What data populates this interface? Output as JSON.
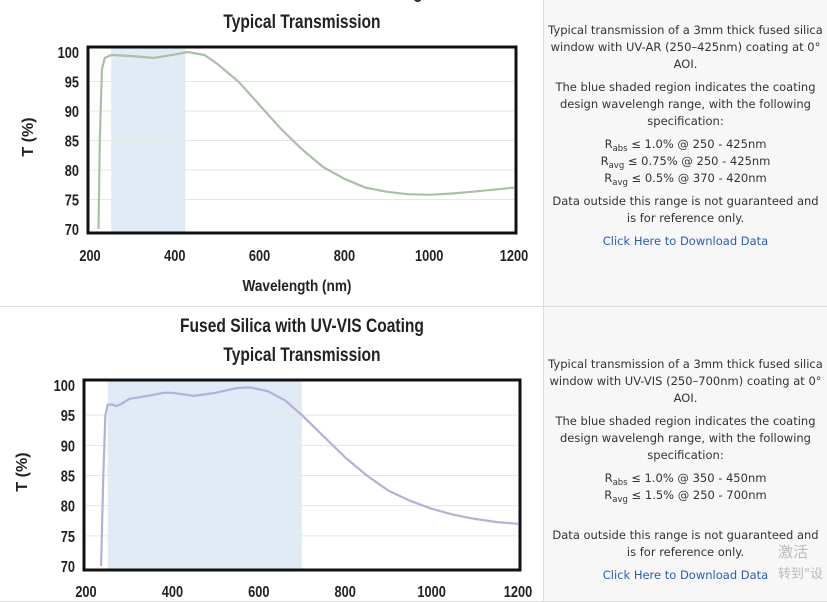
{
  "charts": [
    {
      "title": "Fused Silica with UV-AR Coating",
      "subtitle": "Typical Transmission",
      "xlabel": "Wavelength (nm)",
      "ylabel": "T (%)",
      "description": "Typical transmission of a 3mm thick fused silica window with UV-AR (250–425nm) coating at 0° AOI.",
      "shaded_note": "The blue shaded region indicates the coating design wavelengh range, with the following specification:",
      "specs": [
        {
          "sym": "R",
          "sub": "abs",
          "text": "≤ 1.0% @ 250 - 425nm"
        },
        {
          "sym": "R",
          "sub": "avg",
          "text": "≤ 0.75% @ 250 - 425nm"
        },
        {
          "sym": "R",
          "sub": "avg",
          "text": "≤ 0.5% @ 370 - 420nm"
        }
      ],
      "disclaimer": "Data outside this range is not guaranteed and is for reference only.",
      "download": "Click Here to Download Data"
    },
    {
      "title": "Fused Silica with UV-VIS Coating",
      "subtitle": "Typical Transmission",
      "ylabel": "T (%)",
      "description": "Typical transmission of a 3mm thick fused silica window with UV-VIS (250–700nm) coating at 0° AOI.",
      "shaded_note": "The blue shaded region indicates the coating design wavelengh range, with the following specification:",
      "specs": [
        {
          "sym": "R",
          "sub": "abs",
          "text": "≤ 1.0% @ 350 - 450nm"
        },
        {
          "sym": "R",
          "sub": "avg",
          "text": "≤ 1.5% @ 250 - 700nm"
        }
      ],
      "disclaimer": "Data outside this range is not guaranteed and is for reference only.",
      "download": "Click Here to Download Data"
    }
  ],
  "watermark": {
    "line1": "激活",
    "line2": "转到\"设"
  },
  "chart_data": [
    {
      "type": "line",
      "title": "Fused Silica with UV-AR Coating Typical Transmission",
      "xlabel": "Wavelength (nm)",
      "ylabel": "T (%)",
      "xlim": [
        200,
        1200
      ],
      "ylim": [
        70,
        100
      ],
      "xticks": [
        200,
        400,
        600,
        800,
        1000,
        1200
      ],
      "yticks": [
        70,
        75,
        80,
        85,
        90,
        95,
        100
      ],
      "grid": true,
      "shaded_range": [
        250,
        425
      ],
      "color": "#a9c0a6",
      "shade_color": "#e0ebf6",
      "x": [
        220,
        223,
        228,
        235,
        250,
        300,
        350,
        400,
        430,
        470,
        500,
        550,
        600,
        650,
        700,
        750,
        800,
        850,
        900,
        950,
        1000,
        1050,
        1100,
        1200
      ],
      "y": [
        70,
        85,
        97,
        99,
        99.5,
        99.3,
        99,
        99.6,
        100,
        99.5,
        98,
        95,
        91,
        87,
        83.5,
        80.5,
        78.5,
        77,
        76.3,
        75.9,
        75.8,
        76,
        76.3,
        77
      ]
    },
    {
      "type": "line",
      "title": "Fused Silica with UV-VIS Coating Typical Transmission",
      "ylabel": "T (%)",
      "xlim": [
        200,
        1200
      ],
      "ylim": [
        70,
        100
      ],
      "xticks": [
        200,
        400,
        600,
        800,
        1000,
        1200
      ],
      "yticks": [
        70,
        75,
        80,
        85,
        90,
        95,
        100
      ],
      "grid": true,
      "shaded_range": [
        250,
        700
      ],
      "color": "#b4b0d8",
      "shade_color": "#e0ebf6",
      "x": [
        235,
        240,
        245,
        250,
        260,
        270,
        280,
        300,
        350,
        380,
        400,
        450,
        500,
        550,
        580,
        620,
        660,
        700,
        750,
        800,
        850,
        900,
        950,
        1000,
        1050,
        1100,
        1150,
        1200
      ],
      "y": [
        70,
        85,
        95,
        96.7,
        96.8,
        96.5,
        96.8,
        97.7,
        98.3,
        98.7,
        98.7,
        98.2,
        98.7,
        99.5,
        99.6,
        99,
        97.5,
        95,
        91.5,
        88,
        85,
        82.5,
        80.8,
        79.5,
        78.5,
        77.8,
        77.3,
        77
      ]
    }
  ]
}
